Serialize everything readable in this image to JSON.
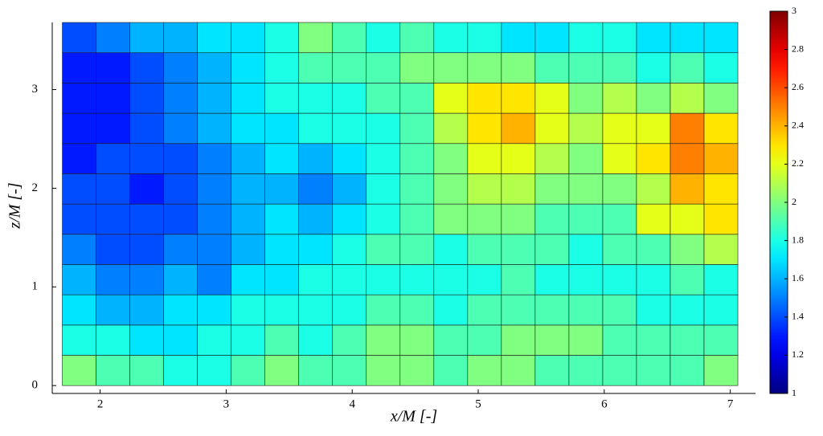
{
  "chart_data": {
    "type": "heatmap",
    "colormap": "jet",
    "xlabel": "x/M [-]",
    "ylabel": "z/M [-]",
    "xlim": [
      1.62,
      7.2
    ],
    "ylim": [
      -0.08,
      3.68
    ],
    "xticks": [
      2,
      3,
      4,
      5,
      6,
      7
    ],
    "yticks": [
      0,
      1,
      2,
      3
    ],
    "x_bins": [
      1.7,
      1.968,
      2.236,
      2.504,
      2.772,
      3.04,
      3.308,
      3.576,
      3.844,
      4.112,
      4.38,
      4.648,
      4.916,
      5.184,
      5.452,
      5.72,
      5.988,
      6.256,
      6.524,
      6.792,
      7.06
    ],
    "y_bins": [
      0,
      0.307,
      0.613,
      0.92,
      1.227,
      1.533,
      1.84,
      2.147,
      2.453,
      2.76,
      3.067,
      3.373,
      3.68
    ],
    "z": [
      [
        2.0,
        1.9,
        1.9,
        1.8,
        1.8,
        1.9,
        2.0,
        1.9,
        1.9,
        2.0,
        2.0,
        1.9,
        2.0,
        2.0,
        1.9,
        1.9,
        1.9,
        1.9,
        1.9,
        2.0
      ],
      [
        1.8,
        1.8,
        1.7,
        1.7,
        1.8,
        1.8,
        1.9,
        1.8,
        1.9,
        2.0,
        2.0,
        1.9,
        1.9,
        2.0,
        2.0,
        2.0,
        1.9,
        1.9,
        1.9,
        1.9
      ],
      [
        1.7,
        1.6,
        1.6,
        1.7,
        1.7,
        1.8,
        1.8,
        1.8,
        1.8,
        1.9,
        1.9,
        1.8,
        1.9,
        1.9,
        1.9,
        1.9,
        1.9,
        1.8,
        1.8,
        1.8
      ],
      [
        1.6,
        1.5,
        1.5,
        1.6,
        1.5,
        1.7,
        1.7,
        1.8,
        1.8,
        1.8,
        1.8,
        1.8,
        1.8,
        1.9,
        1.8,
        1.8,
        1.8,
        1.8,
        1.9,
        1.8
      ],
      [
        1.5,
        1.4,
        1.4,
        1.5,
        1.5,
        1.6,
        1.7,
        1.7,
        1.8,
        1.9,
        1.9,
        1.8,
        1.9,
        1.9,
        1.9,
        1.8,
        1.9,
        1.9,
        2.0,
        2.1
      ],
      [
        1.4,
        1.4,
        1.4,
        1.4,
        1.5,
        1.6,
        1.7,
        1.6,
        1.7,
        1.8,
        1.9,
        2.0,
        2.0,
        2.0,
        1.9,
        1.9,
        1.9,
        2.2,
        2.2,
        2.3
      ],
      [
        1.4,
        1.4,
        1.3,
        1.4,
        1.5,
        1.6,
        1.6,
        1.5,
        1.6,
        1.8,
        1.9,
        2.0,
        2.1,
        2.1,
        2.0,
        2.0,
        2.0,
        2.1,
        2.4,
        2.3
      ],
      [
        1.3,
        1.4,
        1.4,
        1.4,
        1.5,
        1.6,
        1.7,
        1.6,
        1.7,
        1.8,
        1.9,
        2.0,
        2.2,
        2.2,
        2.1,
        2.0,
        2.2,
        2.3,
        2.5,
        2.4
      ],
      [
        1.3,
        1.3,
        1.4,
        1.5,
        1.6,
        1.7,
        1.7,
        1.8,
        1.8,
        1.8,
        1.9,
        2.1,
        2.3,
        2.4,
        2.2,
        2.1,
        2.2,
        2.2,
        2.5,
        2.3
      ],
      [
        1.3,
        1.3,
        1.4,
        1.5,
        1.6,
        1.7,
        1.8,
        1.8,
        1.8,
        1.9,
        1.9,
        2.2,
        2.3,
        2.3,
        2.2,
        2.0,
        2.1,
        2.0,
        2.1,
        2.0
      ],
      [
        1.3,
        1.3,
        1.4,
        1.5,
        1.6,
        1.7,
        1.8,
        1.9,
        1.9,
        1.9,
        2.0,
        2.0,
        2.0,
        2.0,
        1.9,
        1.9,
        1.9,
        1.8,
        1.9,
        1.8
      ],
      [
        1.4,
        1.5,
        1.6,
        1.6,
        1.7,
        1.7,
        1.8,
        2.0,
        1.9,
        1.8,
        1.9,
        1.8,
        1.8,
        1.7,
        1.7,
        1.8,
        1.8,
        1.7,
        1.7,
        1.7
      ]
    ],
    "clim": [
      1,
      3
    ],
    "cticks": [
      1,
      1.2,
      1.4,
      1.6,
      1.8,
      2,
      2.2,
      2.4,
      2.6,
      2.8,
      3
    ]
  }
}
